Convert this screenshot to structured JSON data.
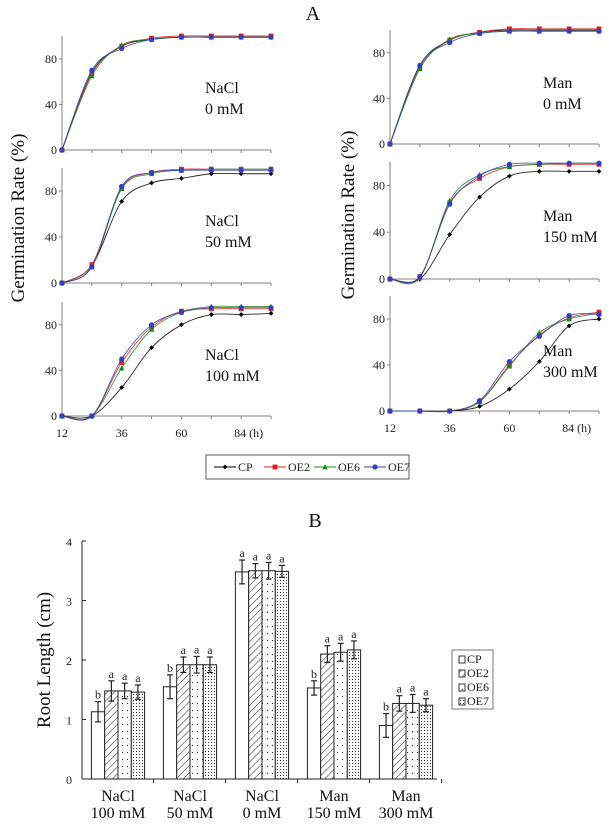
{
  "panel_a": {
    "title": "A",
    "ylabel": "Germination Rate (%)",
    "x_unit": "(h)",
    "legend": [
      {
        "name": "CP",
        "color": "#000000",
        "marker": "diamond"
      },
      {
        "name": "OE2",
        "color": "#e02020",
        "marker": "square"
      },
      {
        "name": "OE6",
        "color": "#1a8a1a",
        "marker": "triangle"
      },
      {
        "name": "OE7",
        "color": "#3040c0",
        "marker": "circle"
      }
    ]
  },
  "panel_b": {
    "title": "B"
  },
  "chart_data": [
    {
      "type": "line",
      "title": "NaCl 0 mM",
      "label_line1": "NaCl",
      "label_line2": "0 mM",
      "x": [
        12,
        24,
        36,
        48,
        60,
        72,
        84,
        96
      ],
      "xticks": [
        12,
        36,
        60,
        84
      ],
      "yticks": [
        0,
        40,
        80
      ],
      "ylim": [
        0,
        100
      ],
      "series": [
        {
          "name": "CP",
          "values": [
            0,
            68,
            91,
            97,
            99,
            99,
            99,
            99
          ]
        },
        {
          "name": "OE2",
          "values": [
            0,
            67,
            91,
            98,
            100,
            100,
            100,
            100
          ]
        },
        {
          "name": "OE6",
          "values": [
            0,
            65,
            92,
            97,
            99,
            99,
            99,
            99
          ]
        },
        {
          "name": "OE7",
          "values": [
            0,
            70,
            89,
            97,
            99,
            99,
            99,
            99
          ]
        }
      ]
    },
    {
      "type": "line",
      "title": "NaCl 50 mM",
      "label_line1": "NaCl",
      "label_line2": "50 mM",
      "x": [
        12,
        24,
        36,
        48,
        60,
        72,
        84,
        96
      ],
      "xticks": [
        12,
        36,
        60,
        84
      ],
      "yticks": [
        0,
        40,
        80
      ],
      "ylim": [
        0,
        100
      ],
      "series": [
        {
          "name": "CP",
          "values": [
            0,
            15,
            71,
            87,
            91,
            95,
            95,
            95
          ]
        },
        {
          "name": "OE2",
          "values": [
            0,
            16,
            83,
            96,
            99,
            99,
            99,
            99
          ]
        },
        {
          "name": "OE6",
          "values": [
            0,
            14,
            82,
            95,
            98,
            99,
            99,
            99
          ]
        },
        {
          "name": "OE7",
          "values": [
            0,
            14,
            84,
            96,
            98,
            98,
            98,
            98
          ]
        }
      ]
    },
    {
      "type": "line",
      "title": "NaCl 100 mM",
      "label_line1": "NaCl",
      "label_line2": "100 mM",
      "x": [
        12,
        24,
        36,
        48,
        60,
        72,
        84,
        96
      ],
      "xticks": [
        12,
        36,
        60,
        84
      ],
      "yticks": [
        0,
        40,
        80
      ],
      "ylim": [
        0,
        100
      ],
      "series": [
        {
          "name": "CP",
          "values": [
            0,
            0,
            25,
            60,
            80,
            89,
            89,
            90
          ]
        },
        {
          "name": "OE2",
          "values": [
            0,
            0,
            47,
            78,
            92,
            94,
            94,
            94
          ]
        },
        {
          "name": "OE6",
          "values": [
            0,
            0,
            42,
            76,
            91,
            96,
            96,
            96
          ]
        },
        {
          "name": "OE7",
          "values": [
            0,
            0,
            50,
            80,
            91,
            95,
            95,
            95
          ]
        }
      ]
    },
    {
      "type": "line",
      "title": "Man 0 mM",
      "label_line1": "Man",
      "label_line2": "0 mM",
      "x": [
        12,
        24,
        36,
        48,
        60,
        72,
        84,
        96
      ],
      "xticks": [
        12,
        36,
        60,
        84
      ],
      "yticks": [
        0,
        40,
        80
      ],
      "ylim": [
        0,
        100
      ],
      "series": [
        {
          "name": "CP",
          "values": [
            0,
            69,
            91,
            98,
            100,
            100,
            100,
            100
          ]
        },
        {
          "name": "OE2",
          "values": [
            0,
            67,
            91,
            98,
            101,
            101,
            101,
            101
          ]
        },
        {
          "name": "OE6",
          "values": [
            0,
            66,
            92,
            97,
            99,
            99,
            99,
            99
          ]
        },
        {
          "name": "OE7",
          "values": [
            0,
            69,
            89,
            97,
            99,
            99,
            99,
            99
          ]
        }
      ]
    },
    {
      "type": "line",
      "title": "Man 150 mM",
      "label_line1": "Man",
      "label_line2": "150 mM",
      "x": [
        12,
        24,
        36,
        48,
        60,
        72,
        84,
        96
      ],
      "xticks": [
        12,
        36,
        60,
        84
      ],
      "yticks": [
        0,
        40,
        80
      ],
      "ylim": [
        0,
        100
      ],
      "series": [
        {
          "name": "CP",
          "values": [
            0,
            0,
            38,
            70,
            88,
            92,
            92,
            92
          ]
        },
        {
          "name": "OE2",
          "values": [
            0,
            2,
            65,
            86,
            96,
            98,
            98,
            98
          ]
        },
        {
          "name": "OE6",
          "values": [
            0,
            1,
            67,
            89,
            96,
            98,
            99,
            99
          ]
        },
        {
          "name": "OE7",
          "values": [
            0,
            2,
            64,
            88,
            98,
            99,
            99,
            99
          ]
        }
      ]
    },
    {
      "type": "line",
      "title": "Man 300 mM",
      "label_line1": "Man",
      "label_line2": "300 mM",
      "x": [
        12,
        24,
        36,
        48,
        60,
        72,
        84,
        96
      ],
      "xticks": [
        12,
        36,
        60,
        84
      ],
      "yticks": [
        0,
        40,
        80
      ],
      "ylim": [
        0,
        100
      ],
      "series": [
        {
          "name": "CP",
          "values": [
            0,
            0,
            0,
            4,
            19,
            43,
            74,
            80
          ]
        },
        {
          "name": "OE2",
          "values": [
            0,
            0,
            0,
            8,
            40,
            66,
            81,
            86
          ]
        },
        {
          "name": "OE6",
          "values": [
            0,
            0,
            0,
            8,
            39,
            68,
            80,
            85
          ]
        },
        {
          "name": "OE7",
          "values": [
            0,
            0,
            0,
            9,
            43,
            65,
            83,
            84
          ]
        }
      ]
    },
    {
      "type": "bar",
      "ylabel": "Root Length (cm)",
      "ylim": [
        0,
        4
      ],
      "yticks": [
        0,
        1,
        2,
        3,
        4
      ],
      "legend_position": "right",
      "categories": [
        [
          "NaCl",
          "100 mM"
        ],
        [
          "NaCl",
          "50 mM"
        ],
        [
          "NaCl",
          "0 mM"
        ],
        [
          "Man",
          "150 mM"
        ],
        [
          "Man",
          "300 mM"
        ]
      ],
      "series": [
        {
          "name": "CP",
          "pattern": "blank",
          "values": [
            1.13,
            1.55,
            3.48,
            1.53,
            0.9
          ],
          "errors": [
            0.17,
            0.2,
            0.2,
            0.12,
            0.2
          ],
          "letters": [
            "b",
            "b",
            "a",
            "b",
            "b"
          ]
        },
        {
          "name": "OE2",
          "pattern": "diagonal-hatch",
          "values": [
            1.48,
            1.92,
            3.5,
            2.1,
            1.27
          ],
          "errors": [
            0.17,
            0.13,
            0.12,
            0.14,
            0.13
          ],
          "letters": [
            "a",
            "a",
            "a",
            "a",
            "a"
          ]
        },
        {
          "name": "OE6",
          "pattern": "sparse-dots",
          "values": [
            1.48,
            1.92,
            3.5,
            2.13,
            1.27
          ],
          "errors": [
            0.13,
            0.14,
            0.14,
            0.15,
            0.15
          ],
          "letters": [
            "a",
            "a",
            "a",
            "a",
            "a"
          ]
        },
        {
          "name": "OE7",
          "pattern": "dense-dots",
          "values": [
            1.46,
            1.92,
            3.49,
            2.17,
            1.24
          ],
          "errors": [
            0.12,
            0.13,
            0.1,
            0.15,
            0.11
          ],
          "letters": [
            "a",
            "a",
            "a",
            "a",
            "a"
          ]
        }
      ]
    }
  ]
}
